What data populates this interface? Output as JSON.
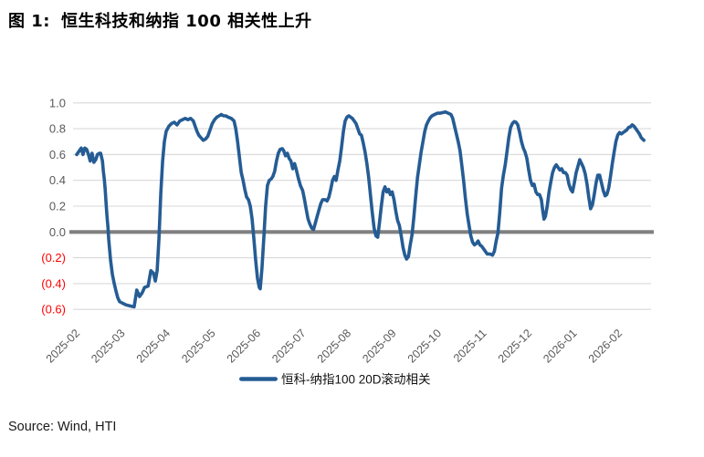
{
  "figure": {
    "label": "图 1:",
    "title": "恒生科技和纳指 100 相关性上升"
  },
  "source": "Source: Wind, HTI",
  "colors": {
    "line": "#255C94",
    "gridline": "#D9D9D9",
    "zero_line": "#808080",
    "axis_label": "#595959",
    "negative_label": "#FF0000",
    "title": "#000000"
  },
  "chart_data": {
    "type": "line",
    "title": "恒生科技和纳指 100 相关性上升",
    "xlabel": "",
    "ylabel": "",
    "ylim": [
      -0.6,
      1.0
    ],
    "grid": true,
    "legend_position": "bottom",
    "x_ticks": [
      "2025-02",
      "2025-03",
      "2025-04",
      "2025-05",
      "2025-06",
      "2025-07",
      "2025-08",
      "2025-09",
      "2025-10",
      "2025-11",
      "2025-12",
      "2026-01",
      "2026-02"
    ],
    "y_ticks": [
      {
        "value": 1.0,
        "label": "1.0",
        "color": "#595959"
      },
      {
        "value": 0.8,
        "label": "0.8",
        "color": "#595959"
      },
      {
        "value": 0.6,
        "label": "0.6",
        "color": "#595959"
      },
      {
        "value": 0.4,
        "label": "0.4",
        "color": "#595959"
      },
      {
        "value": 0.2,
        "label": "0.2",
        "color": "#595959"
      },
      {
        "value": 0.0,
        "label": "0.0",
        "color": "#595959"
      },
      {
        "value": -0.2,
        "label": "(0.2)",
        "color": "#FF0000"
      },
      {
        "value": -0.4,
        "label": "(0.4)",
        "color": "#FF0000"
      },
      {
        "value": -0.6,
        "label": "(0.6)",
        "color": "#FF0000"
      }
    ],
    "x_unit": "months since 2025-02 tick",
    "series": [
      {
        "name": "恒科-纳指100 20D滚动相关",
        "color": "#255C94",
        "points": [
          [
            0.0,
            0.6
          ],
          [
            0.06,
            0.63
          ],
          [
            0.1,
            0.65
          ],
          [
            0.14,
            0.6
          ],
          [
            0.18,
            0.65
          ],
          [
            0.22,
            0.64
          ],
          [
            0.26,
            0.6
          ],
          [
            0.3,
            0.55
          ],
          [
            0.34,
            0.61
          ],
          [
            0.38,
            0.54
          ],
          [
            0.42,
            0.56
          ],
          [
            0.46,
            0.6
          ],
          [
            0.5,
            0.61
          ],
          [
            0.53,
            0.61
          ],
          [
            0.57,
            0.55
          ],
          [
            0.59,
            0.47
          ],
          [
            0.61,
            0.41
          ],
          [
            0.63,
            0.33
          ],
          [
            0.65,
            0.22
          ],
          [
            0.67,
            0.12
          ],
          [
            0.69,
            0.04
          ],
          [
            0.71,
            -0.06
          ],
          [
            0.73,
            -0.14
          ],
          [
            0.75,
            -0.22
          ],
          [
            0.79,
            -0.33
          ],
          [
            0.83,
            -0.4
          ],
          [
            0.87,
            -0.46
          ],
          [
            0.91,
            -0.51
          ],
          [
            0.95,
            -0.54
          ],
          [
            1.03,
            -0.555
          ],
          [
            1.09,
            -0.565
          ],
          [
            1.15,
            -0.57
          ],
          [
            1.21,
            -0.575
          ],
          [
            1.27,
            -0.58
          ],
          [
            1.33,
            -0.45
          ],
          [
            1.39,
            -0.5
          ],
          [
            1.45,
            -0.47
          ],
          [
            1.5,
            -0.43
          ],
          [
            1.58,
            -0.42
          ],
          [
            1.64,
            -0.3
          ],
          [
            1.7,
            -0.32
          ],
          [
            1.74,
            -0.38
          ],
          [
            1.78,
            -0.3
          ],
          [
            1.82,
            -0.05
          ],
          [
            1.86,
            0.3
          ],
          [
            1.9,
            0.55
          ],
          [
            1.94,
            0.7
          ],
          [
            1.98,
            0.78
          ],
          [
            2.04,
            0.82
          ],
          [
            2.1,
            0.84
          ],
          [
            2.16,
            0.85
          ],
          [
            2.22,
            0.83
          ],
          [
            2.28,
            0.86
          ],
          [
            2.34,
            0.87
          ],
          [
            2.4,
            0.88
          ],
          [
            2.46,
            0.87
          ],
          [
            2.52,
            0.88
          ],
          [
            2.58,
            0.86
          ],
          [
            2.62,
            0.82
          ],
          [
            2.66,
            0.78
          ],
          [
            2.7,
            0.75
          ],
          [
            2.75,
            0.73
          ],
          [
            2.8,
            0.71
          ],
          [
            2.85,
            0.72
          ],
          [
            2.9,
            0.74
          ],
          [
            2.95,
            0.79
          ],
          [
            3.0,
            0.84
          ],
          [
            3.05,
            0.87
          ],
          [
            3.1,
            0.89
          ],
          [
            3.15,
            0.9
          ],
          [
            3.2,
            0.91
          ],
          [
            3.25,
            0.9
          ],
          [
            3.3,
            0.9
          ],
          [
            3.35,
            0.89
          ],
          [
            3.42,
            0.88
          ],
          [
            3.48,
            0.86
          ],
          [
            3.52,
            0.8
          ],
          [
            3.56,
            0.7
          ],
          [
            3.6,
            0.58
          ],
          [
            3.64,
            0.46
          ],
          [
            3.68,
            0.4
          ],
          [
            3.72,
            0.33
          ],
          [
            3.76,
            0.27
          ],
          [
            3.8,
            0.25
          ],
          [
            3.84,
            0.2
          ],
          [
            3.88,
            0.1
          ],
          [
            3.92,
            -0.05
          ],
          [
            3.96,
            -0.22
          ],
          [
            4.0,
            -0.36
          ],
          [
            4.04,
            -0.43
          ],
          [
            4.06,
            -0.44
          ],
          [
            4.1,
            -0.28
          ],
          [
            4.14,
            -0.05
          ],
          [
            4.18,
            0.2
          ],
          [
            4.22,
            0.36
          ],
          [
            4.26,
            0.4
          ],
          [
            4.3,
            0.41
          ],
          [
            4.34,
            0.43
          ],
          [
            4.38,
            0.47
          ],
          [
            4.42,
            0.55
          ],
          [
            4.46,
            0.61
          ],
          [
            4.5,
            0.64
          ],
          [
            4.55,
            0.645
          ],
          [
            4.58,
            0.63
          ],
          [
            4.62,
            0.59
          ],
          [
            4.66,
            0.61
          ],
          [
            4.7,
            0.57
          ],
          [
            4.74,
            0.55
          ],
          [
            4.78,
            0.49
          ],
          [
            4.82,
            0.53
          ],
          [
            4.86,
            0.48
          ],
          [
            4.9,
            0.42
          ],
          [
            4.95,
            0.36
          ],
          [
            5.0,
            0.32
          ],
          [
            5.04,
            0.25
          ],
          [
            5.08,
            0.17
          ],
          [
            5.12,
            0.1
          ],
          [
            5.16,
            0.06
          ],
          [
            5.2,
            0.03
          ],
          [
            5.24,
            0.02
          ],
          [
            5.28,
            0.07
          ],
          [
            5.32,
            0.12
          ],
          [
            5.36,
            0.17
          ],
          [
            5.4,
            0.22
          ],
          [
            5.44,
            0.25
          ],
          [
            5.5,
            0.25
          ],
          [
            5.54,
            0.24
          ],
          [
            5.58,
            0.27
          ],
          [
            5.62,
            0.33
          ],
          [
            5.66,
            0.4
          ],
          [
            5.7,
            0.43
          ],
          [
            5.74,
            0.4
          ],
          [
            5.78,
            0.48
          ],
          [
            5.82,
            0.55
          ],
          [
            5.86,
            0.66
          ],
          [
            5.9,
            0.78
          ],
          [
            5.94,
            0.86
          ],
          [
            5.98,
            0.89
          ],
          [
            6.02,
            0.9
          ],
          [
            6.06,
            0.89
          ],
          [
            6.1,
            0.88
          ],
          [
            6.14,
            0.86
          ],
          [
            6.18,
            0.84
          ],
          [
            6.22,
            0.8
          ],
          [
            6.26,
            0.76
          ],
          [
            6.3,
            0.75
          ],
          [
            6.34,
            0.69
          ],
          [
            6.38,
            0.62
          ],
          [
            6.42,
            0.53
          ],
          [
            6.46,
            0.42
          ],
          [
            6.5,
            0.28
          ],
          [
            6.54,
            0.15
          ],
          [
            6.58,
            0.03
          ],
          [
            6.62,
            -0.03
          ],
          [
            6.66,
            -0.04
          ],
          [
            6.7,
            0.08
          ],
          [
            6.74,
            0.2
          ],
          [
            6.78,
            0.31
          ],
          [
            6.82,
            0.35
          ],
          [
            6.86,
            0.31
          ],
          [
            6.9,
            0.33
          ],
          [
            6.94,
            0.29
          ],
          [
            6.98,
            0.31
          ],
          [
            7.02,
            0.25
          ],
          [
            7.06,
            0.16
          ],
          [
            7.1,
            0.09
          ],
          [
            7.14,
            0.05
          ],
          [
            7.18,
            -0.03
          ],
          [
            7.22,
            -0.12
          ],
          [
            7.26,
            -0.18
          ],
          [
            7.3,
            -0.21
          ],
          [
            7.34,
            -0.19
          ],
          [
            7.38,
            -0.1
          ],
          [
            7.42,
            -0.02
          ],
          [
            7.46,
            0.12
          ],
          [
            7.5,
            0.28
          ],
          [
            7.54,
            0.42
          ],
          [
            7.58,
            0.52
          ],
          [
            7.62,
            0.62
          ],
          [
            7.66,
            0.7
          ],
          [
            7.7,
            0.78
          ],
          [
            7.74,
            0.83
          ],
          [
            7.78,
            0.86
          ],
          [
            7.82,
            0.885
          ],
          [
            7.86,
            0.9
          ],
          [
            7.92,
            0.91
          ],
          [
            7.98,
            0.92
          ],
          [
            8.04,
            0.92
          ],
          [
            8.1,
            0.925
          ],
          [
            8.16,
            0.93
          ],
          [
            8.22,
            0.92
          ],
          [
            8.28,
            0.91
          ],
          [
            8.32,
            0.88
          ],
          [
            8.36,
            0.82
          ],
          [
            8.4,
            0.76
          ],
          [
            8.44,
            0.7
          ],
          [
            8.48,
            0.63
          ],
          [
            8.52,
            0.52
          ],
          [
            8.56,
            0.4
          ],
          [
            8.6,
            0.26
          ],
          [
            8.64,
            0.14
          ],
          [
            8.68,
            0.05
          ],
          [
            8.72,
            -0.03
          ],
          [
            8.76,
            -0.08
          ],
          [
            8.8,
            -0.1
          ],
          [
            8.84,
            -0.09
          ],
          [
            8.88,
            -0.07
          ],
          [
            8.92,
            -0.1
          ],
          [
            8.96,
            -0.11
          ],
          [
            9.0,
            -0.13
          ],
          [
            9.04,
            -0.15
          ],
          [
            9.08,
            -0.17
          ],
          [
            9.14,
            -0.17
          ],
          [
            9.2,
            -0.18
          ],
          [
            9.24,
            -0.15
          ],
          [
            9.28,
            -0.07
          ],
          [
            9.32,
            -0.01
          ],
          [
            9.36,
            0.15
          ],
          [
            9.4,
            0.34
          ],
          [
            9.44,
            0.44
          ],
          [
            9.48,
            0.52
          ],
          [
            9.52,
            0.62
          ],
          [
            9.56,
            0.73
          ],
          [
            9.6,
            0.81
          ],
          [
            9.64,
            0.84
          ],
          [
            9.68,
            0.855
          ],
          [
            9.72,
            0.85
          ],
          [
            9.76,
            0.83
          ],
          [
            9.8,
            0.77
          ],
          [
            9.84,
            0.7
          ],
          [
            9.88,
            0.65
          ],
          [
            9.92,
            0.62
          ],
          [
            9.96,
            0.57
          ],
          [
            10.0,
            0.48
          ],
          [
            10.04,
            0.4
          ],
          [
            10.08,
            0.36
          ],
          [
            10.12,
            0.37
          ],
          [
            10.16,
            0.31
          ],
          [
            10.2,
            0.29
          ],
          [
            10.24,
            0.29
          ],
          [
            10.28,
            0.25
          ],
          [
            10.31,
            0.17
          ],
          [
            10.34,
            0.1
          ],
          [
            10.37,
            0.12
          ],
          [
            10.41,
            0.2
          ],
          [
            10.45,
            0.31
          ],
          [
            10.49,
            0.39
          ],
          [
            10.53,
            0.46
          ],
          [
            10.57,
            0.5
          ],
          [
            10.61,
            0.52
          ],
          [
            10.65,
            0.5
          ],
          [
            10.69,
            0.48
          ],
          [
            10.73,
            0.49
          ],
          [
            10.77,
            0.46
          ],
          [
            10.81,
            0.46
          ],
          [
            10.85,
            0.44
          ],
          [
            10.89,
            0.37
          ],
          [
            10.93,
            0.33
          ],
          [
            10.97,
            0.31
          ],
          [
            11.01,
            0.38
          ],
          [
            11.05,
            0.46
          ],
          [
            11.09,
            0.51
          ],
          [
            11.13,
            0.56
          ],
          [
            11.17,
            0.53
          ],
          [
            11.21,
            0.5
          ],
          [
            11.25,
            0.45
          ],
          [
            11.29,
            0.37
          ],
          [
            11.33,
            0.27
          ],
          [
            11.37,
            0.18
          ],
          [
            11.41,
            0.21
          ],
          [
            11.45,
            0.29
          ],
          [
            11.49,
            0.38
          ],
          [
            11.53,
            0.44
          ],
          [
            11.57,
            0.44
          ],
          [
            11.61,
            0.38
          ],
          [
            11.65,
            0.32
          ],
          [
            11.69,
            0.28
          ],
          [
            11.73,
            0.29
          ],
          [
            11.77,
            0.34
          ],
          [
            11.81,
            0.43
          ],
          [
            11.85,
            0.53
          ],
          [
            11.89,
            0.62
          ],
          [
            11.93,
            0.7
          ],
          [
            11.97,
            0.75
          ],
          [
            12.01,
            0.77
          ],
          [
            12.05,
            0.76
          ],
          [
            12.09,
            0.77
          ],
          [
            12.13,
            0.78
          ],
          [
            12.17,
            0.79
          ],
          [
            12.21,
            0.81
          ],
          [
            12.25,
            0.815
          ],
          [
            12.29,
            0.83
          ],
          [
            12.33,
            0.82
          ],
          [
            12.37,
            0.8
          ],
          [
            12.41,
            0.78
          ],
          [
            12.45,
            0.76
          ],
          [
            12.49,
            0.73
          ],
          [
            12.55,
            0.71
          ]
        ]
      }
    ]
  }
}
